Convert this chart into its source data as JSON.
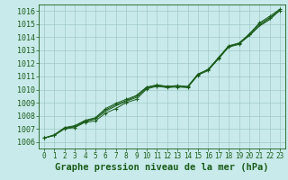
{
  "background_color": "#c8eaea",
  "grid_color": "#a0c8c8",
  "line_color": "#1a5c1a",
  "marker_color": "#1a5c1a",
  "xlabel": "Graphe pression niveau de la mer (hPa)",
  "xlabel_fontsize": 7.5,
  "ytick_fontsize": 6.0,
  "xtick_fontsize": 5.5,
  "yticks": [
    1006,
    1007,
    1008,
    1009,
    1010,
    1011,
    1012,
    1013,
    1014,
    1015,
    1016
  ],
  "xticks": [
    0,
    1,
    2,
    3,
    4,
    5,
    6,
    7,
    8,
    9,
    10,
    11,
    12,
    13,
    14,
    15,
    16,
    17,
    18,
    19,
    20,
    21,
    22,
    23
  ],
  "ylim": [
    1005.5,
    1016.5
  ],
  "xlim": [
    -0.5,
    23.5
  ],
  "series": [
    [
      1006.3,
      1006.5,
      1007.0,
      1007.1,
      1007.5,
      1007.6,
      1008.2,
      1008.55,
      1009.0,
      1009.25,
      1010.05,
      1010.25,
      1010.15,
      1010.2,
      1010.15,
      1011.1,
      1011.45,
      1012.35,
      1013.25,
      1013.45,
      1014.2,
      1015.0,
      1015.5,
      1016.05
    ],
    [
      1006.3,
      1006.5,
      1007.05,
      1007.15,
      1007.55,
      1007.75,
      1008.35,
      1008.75,
      1009.1,
      1009.4,
      1010.1,
      1010.3,
      1010.2,
      1010.25,
      1010.2,
      1011.2,
      1011.5,
      1012.4,
      1013.3,
      1013.5,
      1014.1,
      1014.85,
      1015.35,
      1016.05
    ],
    [
      1006.3,
      1006.52,
      1007.05,
      1007.2,
      1007.6,
      1007.8,
      1008.45,
      1008.85,
      1009.15,
      1009.5,
      1010.15,
      1010.35,
      1010.25,
      1010.3,
      1010.2,
      1011.15,
      1011.55,
      1012.35,
      1013.3,
      1013.55,
      1014.15,
      1014.9,
      1015.45,
      1016.1
    ],
    [
      1006.3,
      1006.55,
      1007.1,
      1007.25,
      1007.65,
      1007.85,
      1008.55,
      1008.95,
      1009.25,
      1009.55,
      1010.2,
      1010.35,
      1010.25,
      1010.3,
      1010.25,
      1011.15,
      1011.55,
      1012.45,
      1013.35,
      1013.55,
      1014.25,
      1015.1,
      1015.6,
      1016.15
    ]
  ]
}
